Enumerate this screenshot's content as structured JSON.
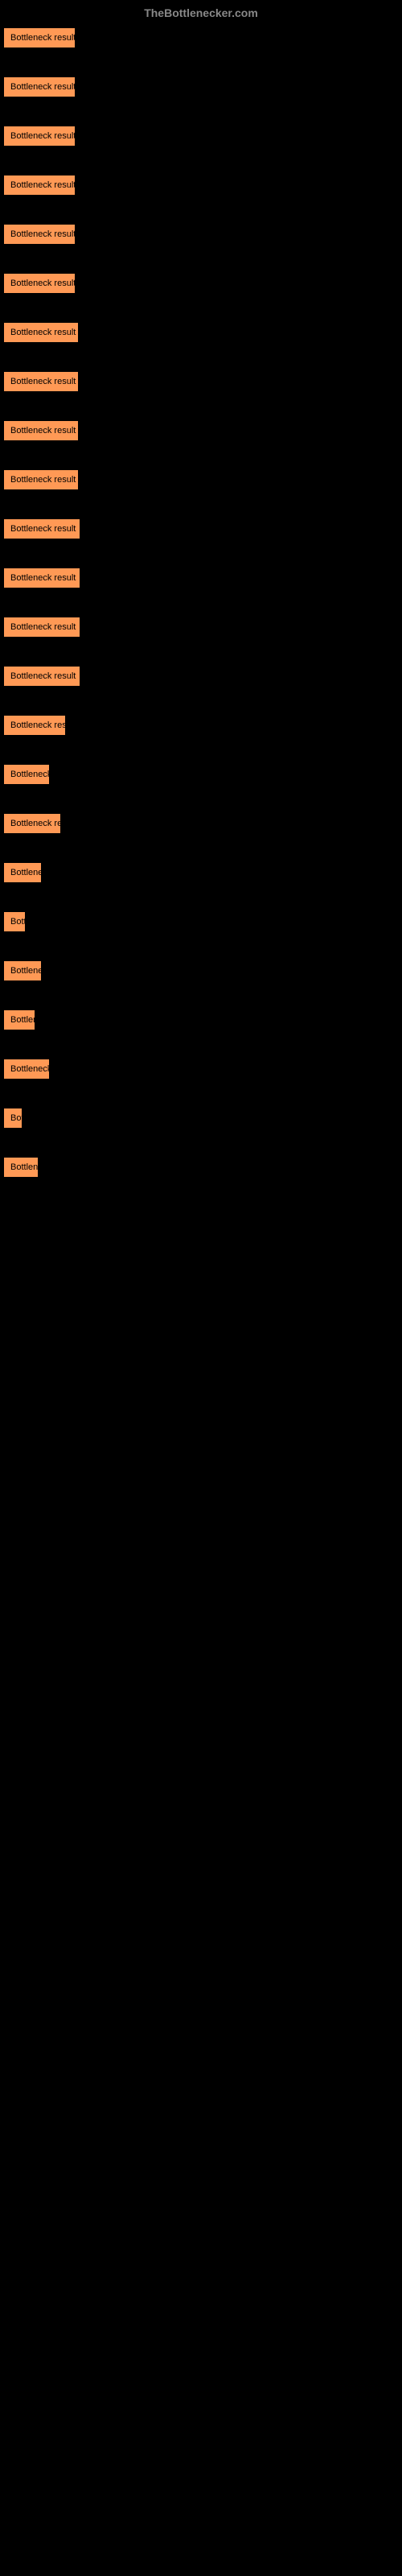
{
  "header": {
    "site_name": "TheBottlenecker.com"
  },
  "buttons": [
    {
      "label": "Bottleneck result",
      "width": 90
    },
    {
      "label": "Bottleneck result",
      "width": 90
    },
    {
      "label": "Bottleneck result",
      "width": 90
    },
    {
      "label": "Bottleneck result",
      "width": 90
    },
    {
      "label": "Bottleneck result",
      "width": 90
    },
    {
      "label": "Bottleneck result",
      "width": 90
    },
    {
      "label": "Bottleneck result",
      "width": 94
    },
    {
      "label": "Bottleneck result",
      "width": 94
    },
    {
      "label": "Bottleneck result",
      "width": 94
    },
    {
      "label": "Bottleneck result",
      "width": 94
    },
    {
      "label": "Bottleneck result",
      "width": 96
    },
    {
      "label": "Bottleneck result",
      "width": 96
    },
    {
      "label": "Bottleneck result",
      "width": 96
    },
    {
      "label": "Bottleneck result",
      "width": 96
    },
    {
      "label": "Bottleneck result",
      "width": 78
    },
    {
      "label": "Bottleneck result",
      "width": 58
    },
    {
      "label": "Bottleneck result",
      "width": 72
    },
    {
      "label": "Bottleneck result",
      "width": 48
    },
    {
      "label": "Bottleneck result",
      "width": 28
    },
    {
      "label": "Bottleneck result",
      "width": 48
    },
    {
      "label": "Bottleneck result",
      "width": 40
    },
    {
      "label": "Bottleneck result",
      "width": 58
    },
    {
      "label": "Bottleneck result",
      "width": 24
    },
    {
      "label": "Bottleneck result",
      "width": 44
    }
  ],
  "colors": {
    "background": "#000000",
    "button_bg": "#ff9955",
    "button_text": "#000000",
    "header_text": "#888888"
  }
}
